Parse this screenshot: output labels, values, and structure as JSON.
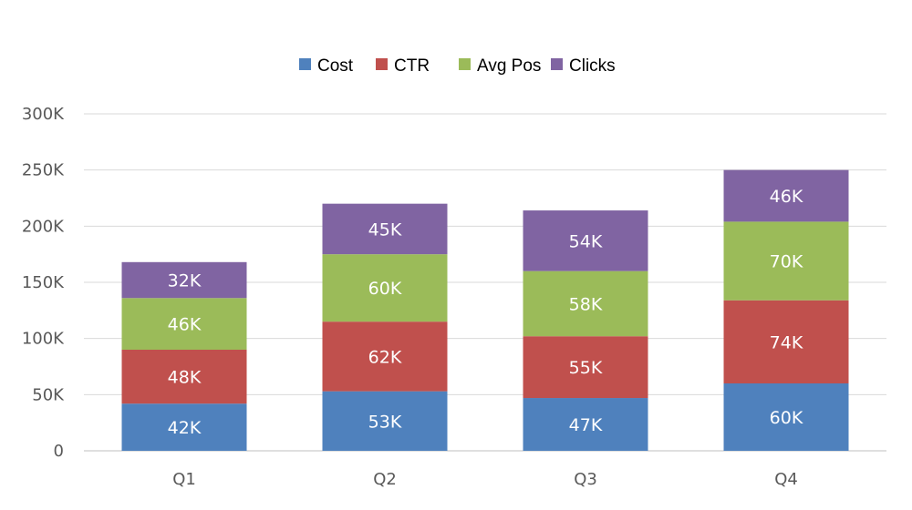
{
  "chart_data": {
    "type": "bar",
    "stacked": true,
    "categories": [
      "Q1",
      "Q2",
      "Q3",
      "Q4"
    ],
    "series": [
      {
        "name": "Cost",
        "color": "#4f81bd",
        "values": [
          42,
          53,
          47,
          60
        ],
        "labels": [
          "42K",
          "53K",
          "47K",
          "60K"
        ]
      },
      {
        "name": "CTR",
        "color": "#c0504d",
        "values": [
          48,
          62,
          55,
          74
        ],
        "labels": [
          "48K",
          "62K",
          "55K",
          "74K"
        ]
      },
      {
        "name": "Avg Pos",
        "color": "#9bbb59",
        "values": [
          46,
          60,
          58,
          70
        ],
        "labels": [
          "46K",
          "60K",
          "58K",
          "70K"
        ]
      },
      {
        "name": "Clicks",
        "color": "#8064a2",
        "values": [
          32,
          45,
          54,
          46
        ],
        "labels": [
          "32K",
          "45K",
          "54K",
          "46K"
        ]
      }
    ],
    "y_ticks": [
      0,
      50,
      100,
      150,
      200,
      250,
      300
    ],
    "y_tick_labels": [
      "0",
      "50K",
      "100K",
      "150K",
      "200K",
      "250K",
      "300K"
    ],
    "ylim": [
      0,
      300
    ],
    "legend_position": "top-center",
    "grid": true
  }
}
